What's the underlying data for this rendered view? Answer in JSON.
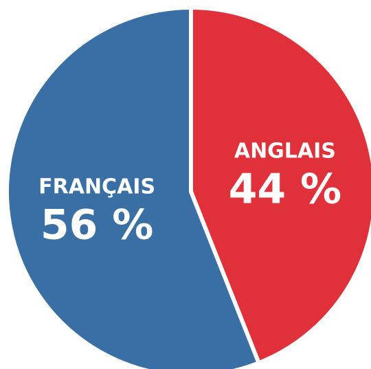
{
  "chart_data": {
    "type": "pie",
    "categories": [
      "ANGLAIS",
      "FRANÇAIS"
    ],
    "values": [
      44,
      56
    ],
    "value_labels": [
      "44 %",
      "56 %"
    ],
    "colors": [
      "#e0303a",
      "#3a6fa5"
    ]
  }
}
